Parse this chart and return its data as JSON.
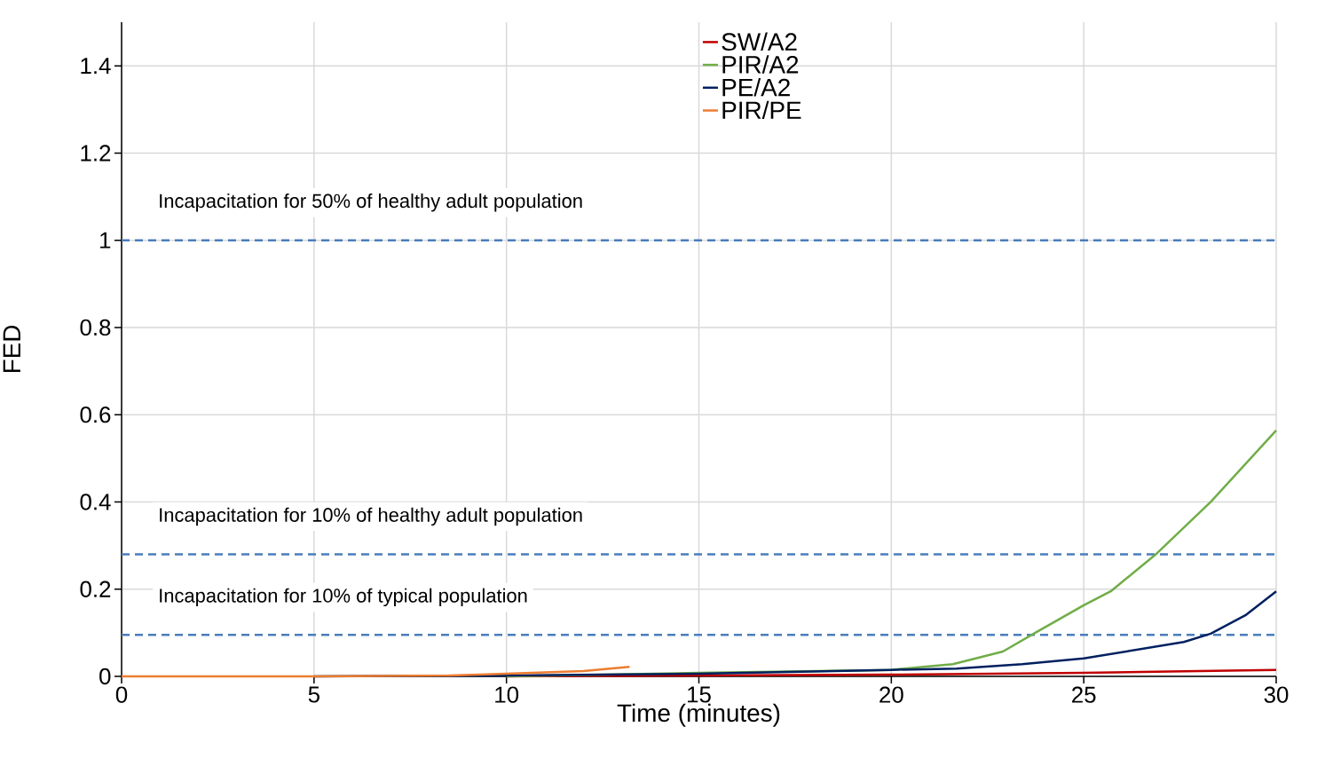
{
  "chart_data": {
    "type": "line",
    "xlabel": "Time (minutes)",
    "ylabel": "FED",
    "xlim": [
      0,
      30
    ],
    "ylim": [
      0,
      1.5
    ],
    "xticks": [
      0,
      5,
      10,
      15,
      20,
      25,
      30
    ],
    "yticks": [
      0,
      0.2,
      0.4,
      0.6,
      0.8,
      1,
      1.2,
      1.4
    ],
    "grid": true,
    "legend": "top",
    "line_style": "solid",
    "marker": "none",
    "series": [
      {
        "name": "SW/A2",
        "color": "#c00000",
        "x": [
          10,
          15,
          20,
          25,
          28,
          30
        ],
        "values": [
          0,
          0.002,
          0.004,
          0.008,
          0.012,
          0.015
        ]
      },
      {
        "name": "PIR/A2",
        "color": "#70ad47",
        "x": [
          10,
          15,
          20,
          21.6,
          22.9,
          23.7,
          25,
          25.7,
          26.9,
          28.3,
          30
        ],
        "values": [
          0,
          0.008,
          0.015,
          0.028,
          0.057,
          0.098,
          0.163,
          0.195,
          0.282,
          0.4,
          0.564
        ]
      },
      {
        "name": "PE/A2",
        "color": "#002060",
        "x": [
          5,
          10,
          15,
          20,
          21.7,
          23.4,
          25,
          27.6,
          28.3,
          29.2,
          30
        ],
        "values": [
          0,
          0.002,
          0.006,
          0.015,
          0.018,
          0.028,
          0.041,
          0.079,
          0.098,
          0.14,
          0.195
        ]
      },
      {
        "name": "PIR/PE",
        "color": "#ed7d31",
        "x": [
          0,
          5,
          8.5,
          10,
          12,
          13.2
        ],
        "values": [
          0,
          0,
          0.002,
          0.006,
          0.012,
          0.022
        ]
      }
    ],
    "ref_lines": [
      {
        "axis": "y",
        "value": 1,
        "label": "Incapacitation for 50% of healthy adult population",
        "color": "#4a7ebb",
        "line_style": "dashed"
      },
      {
        "axis": "y",
        "value": 0.28,
        "label": "Incapacitation for 10% of healthy adult population",
        "color": "#4a7ebb",
        "line_style": "dashed"
      },
      {
        "axis": "y",
        "value": 0.095,
        "label": "Incapacitation for 10% of typical population",
        "color": "#4a7ebb",
        "line_style": "dashed"
      }
    ]
  }
}
